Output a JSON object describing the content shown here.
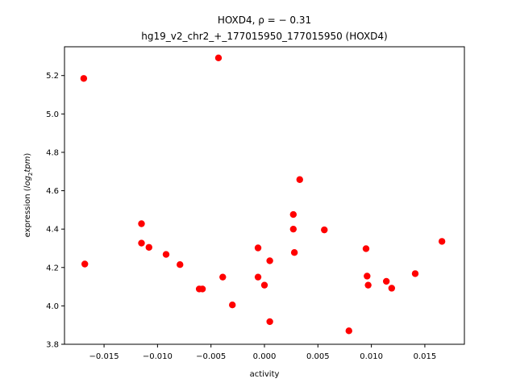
{
  "chart_data": {
    "type": "scatter",
    "title_line1": "HOXD4, ρ = − 0.31",
    "title_line2": "hg19_v2_chr2_+_177015950_177015950 (HOXD4)",
    "xlabel": "activity",
    "ylabel_prefix": "expression (",
    "ylabel_italic_a": "log",
    "ylabel_sub": "2",
    "ylabel_italic_b": "tpm",
    "ylabel_suffix": ")",
    "xlim": [
      -0.0187,
      0.0187
    ],
    "ylim": [
      3.8,
      5.35
    ],
    "xticks": [
      -0.015,
      -0.01,
      -0.005,
      0.0,
      0.005,
      0.01,
      0.015
    ],
    "xtick_labels": [
      "−0.015",
      "−0.010",
      "−0.005",
      "0.000",
      "0.005",
      "0.010",
      "0.015"
    ],
    "yticks": [
      3.8,
      4.0,
      4.2,
      4.4,
      4.6,
      4.8,
      5.0,
      5.2
    ],
    "ytick_labels": [
      "3.8",
      "4.0",
      "4.2",
      "4.4",
      "4.6",
      "4.8",
      "5.0",
      "5.2"
    ],
    "marker_color": "#ff0000",
    "grid": false,
    "points": [
      {
        "x": -0.0169,
        "y": 5.185
      },
      {
        "x": -0.0168,
        "y": 4.218
      },
      {
        "x": -0.0115,
        "y": 4.428
      },
      {
        "x": -0.0115,
        "y": 4.327
      },
      {
        "x": -0.0108,
        "y": 4.305
      },
      {
        "x": -0.0092,
        "y": 4.268
      },
      {
        "x": -0.0079,
        "y": 4.215
      },
      {
        "x": -0.0061,
        "y": 4.088
      },
      {
        "x": -0.0058,
        "y": 4.088
      },
      {
        "x": -0.0043,
        "y": 5.292
      },
      {
        "x": -0.0039,
        "y": 4.15
      },
      {
        "x": -0.003,
        "y": 4.005
      },
      {
        "x": -0.0006,
        "y": 4.302
      },
      {
        "x": -0.0006,
        "y": 4.15
      },
      {
        "x": 0.0,
        "y": 4.108
      },
      {
        "x": 0.0005,
        "y": 4.235
      },
      {
        "x": 0.0005,
        "y": 3.918
      },
      {
        "x": 0.0027,
        "y": 4.476
      },
      {
        "x": 0.0027,
        "y": 4.4
      },
      {
        "x": 0.0028,
        "y": 4.278
      },
      {
        "x": 0.0033,
        "y": 4.658
      },
      {
        "x": 0.0056,
        "y": 4.396
      },
      {
        "x": 0.0079,
        "y": 3.87
      },
      {
        "x": 0.0095,
        "y": 4.298
      },
      {
        "x": 0.0096,
        "y": 4.155
      },
      {
        "x": 0.0097,
        "y": 4.108
      },
      {
        "x": 0.0114,
        "y": 4.128
      },
      {
        "x": 0.0119,
        "y": 4.092
      },
      {
        "x": 0.0141,
        "y": 4.168
      },
      {
        "x": 0.0166,
        "y": 4.336
      }
    ]
  }
}
